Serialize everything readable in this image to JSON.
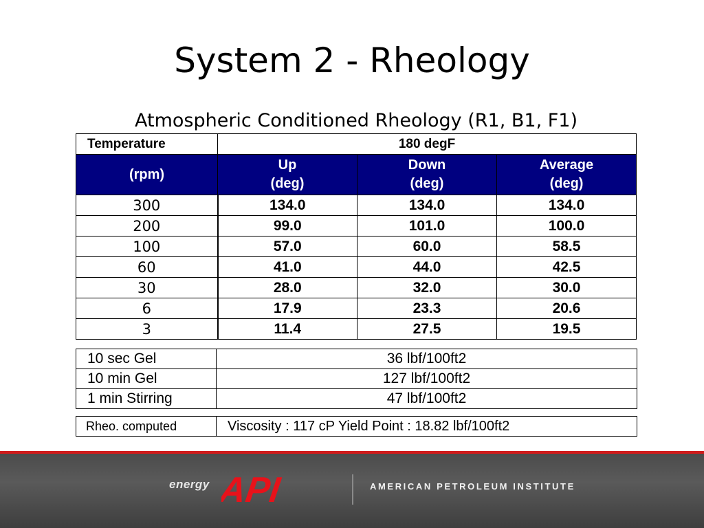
{
  "slide": {
    "title": "System 2 - Rheology"
  },
  "table": {
    "title": "Atmospheric Conditioned Rheology (R1, B1, F1)",
    "temperature_label": "Temperature",
    "temperature_value": "180 degF",
    "headers": {
      "rpm": "(rpm)",
      "up_line1": "Up",
      "up_line2": "(deg)",
      "down_line1": "Down",
      "down_line2": "(deg)",
      "avg_line1": "Average",
      "avg_line2": "(deg)"
    },
    "rows": [
      {
        "rpm": "300",
        "up": "134.0",
        "down": "134.0",
        "avg": "134.0"
      },
      {
        "rpm": "200",
        "up": "99.0",
        "down": "101.0",
        "avg": "100.0"
      },
      {
        "rpm": "100",
        "up": "57.0",
        "down": "60.0",
        "avg": "58.5"
      },
      {
        "rpm": "60",
        "up": "41.0",
        "down": "44.0",
        "avg": "42.5"
      },
      {
        "rpm": "30",
        "up": "28.0",
        "down": "32.0",
        "avg": "30.0"
      },
      {
        "rpm": "6",
        "up": "17.9",
        "down": "23.3",
        "avg": "20.6"
      },
      {
        "rpm": "3",
        "up": "11.4",
        "down": "27.5",
        "avg": "19.5"
      }
    ]
  },
  "gels": [
    {
      "label": "10 sec Gel",
      "value": "36 lbf/100ft2"
    },
    {
      "label": "10 min Gel",
      "value": "127 lbf/100ft2"
    },
    {
      "label": "1 min Stirring",
      "value": "47 lbf/100ft2"
    }
  ],
  "rheo": {
    "label": "Rheo. computed",
    "text": "Viscosity : 117 cP   Yield Point : 18.82 lbf/100ft2"
  },
  "footer": {
    "energy": "energy",
    "api": "API",
    "institute": "AMERICAN PETROLEUM INSTITUTE",
    "red_color": "#d01c1c",
    "logo_color": "#e8121a"
  }
}
